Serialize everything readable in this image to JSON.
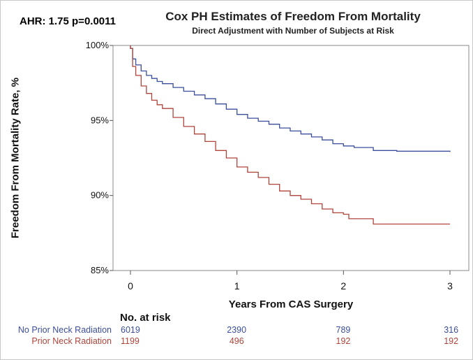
{
  "annotation": "AHR: 1.75 p=0.0011",
  "chart_data": {
    "type": "line",
    "step": true,
    "title": "Cox PH Estimates of Freedom From Mortality",
    "subtitle": "Direct Adjustment with Number of Subjects at Risk",
    "xlabel": "Years From CAS Surgery",
    "ylabel": "Freedom From Mortality Rate, %",
    "xlim": [
      0,
      3
    ],
    "ylim": [
      85,
      100
    ],
    "x_ticks": [
      0,
      1,
      2,
      3
    ],
    "x_tick_labels": [
      "0",
      "1",
      "2",
      "3"
    ],
    "y_ticks": [
      85,
      90,
      95,
      100
    ],
    "y_tick_labels": [
      "85%",
      "90%",
      "95%",
      "100%"
    ],
    "grid": false,
    "legend": "none",
    "series": [
      {
        "name": "No Prior Neck Radiation",
        "color": "#3b4e9c",
        "x": [
          0,
          0.02,
          0.05,
          0.1,
          0.15,
          0.2,
          0.25,
          0.3,
          0.4,
          0.5,
          0.6,
          0.7,
          0.8,
          0.9,
          1.0,
          1.1,
          1.2,
          1.3,
          1.4,
          1.5,
          1.6,
          1.7,
          1.8,
          1.9,
          2.0,
          2.1,
          2.28,
          2.5,
          3.0
        ],
        "values": [
          99.8,
          99.1,
          98.7,
          98.3,
          98.0,
          97.8,
          97.6,
          97.45,
          97.2,
          96.95,
          96.7,
          96.45,
          96.1,
          95.75,
          95.4,
          95.15,
          94.95,
          94.75,
          94.5,
          94.3,
          94.1,
          93.9,
          93.7,
          93.45,
          93.3,
          93.2,
          93.0,
          92.95,
          92.9
        ]
      },
      {
        "name": "Prior Neck Radiation",
        "color": "#b0443a",
        "x": [
          0,
          0.02,
          0.05,
          0.1,
          0.15,
          0.2,
          0.25,
          0.3,
          0.4,
          0.5,
          0.6,
          0.7,
          0.8,
          0.9,
          1.0,
          1.1,
          1.2,
          1.3,
          1.4,
          1.5,
          1.6,
          1.7,
          1.8,
          1.9,
          2.0,
          2.05,
          2.28,
          2.5,
          3.0
        ],
        "values": [
          99.8,
          98.6,
          98.0,
          97.3,
          96.8,
          96.35,
          96.05,
          95.8,
          95.2,
          94.6,
          94.1,
          93.6,
          93.0,
          92.5,
          91.9,
          91.55,
          91.2,
          90.75,
          90.3,
          90.0,
          89.75,
          89.45,
          89.1,
          88.85,
          88.75,
          88.45,
          88.1,
          88.1,
          88.1
        ]
      }
    ],
    "risk_table": {
      "title": "No. at risk",
      "times": [
        0,
        1,
        2,
        3
      ],
      "rows": [
        {
          "label": "No Prior Neck Radiation",
          "color": "#3b4e9c",
          "counts": [
            "6019",
            "2390",
            "789",
            "316"
          ]
        },
        {
          "label": "Prior Neck Radiation",
          "color": "#b0443a",
          "counts": [
            "1199",
            "496",
            "192",
            "192"
          ]
        }
      ]
    }
  }
}
